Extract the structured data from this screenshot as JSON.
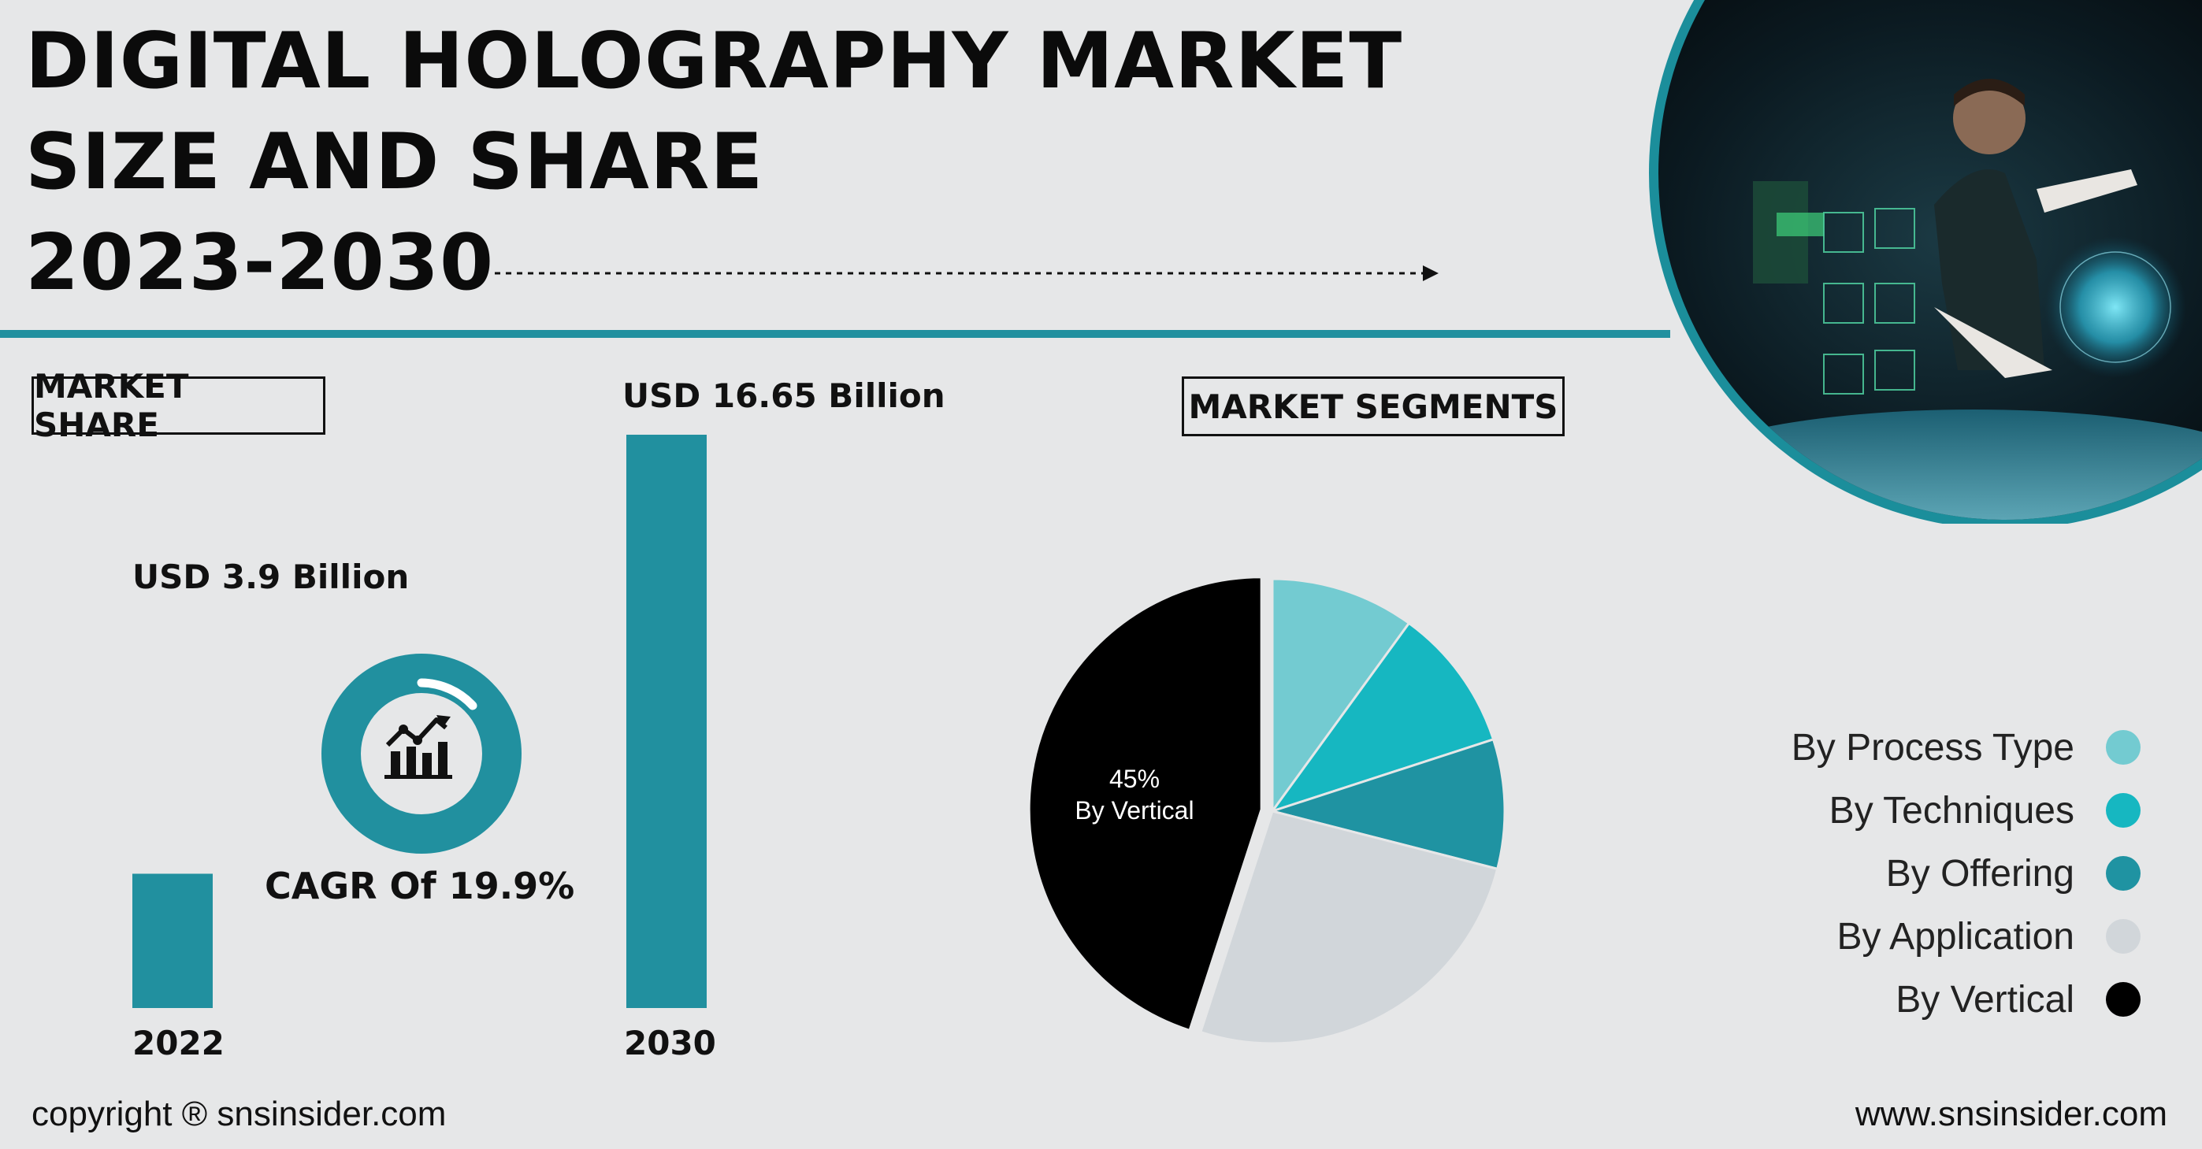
{
  "title": {
    "line1": "DIGITAL HOLOGRAPHY MARKET",
    "line2": "SIZE AND SHARE",
    "line3": "2023-2030"
  },
  "market_share_label": "MARKET SHARE",
  "market_segments_label": "MARKET SEGMENTS",
  "cagr_text": "CAGR Of 19.9%",
  "pie_center_label": {
    "value": "45%",
    "label": "By Vertical"
  },
  "footer": {
    "copyright": "copyright ® snsinsider.com",
    "website": "www.snsinsider.com"
  },
  "colors": {
    "teal": "#21909f",
    "accent": "#16b7c1",
    "light_teal": "#73cbd1",
    "light_gray": "#d1d6da",
    "black": "#000000"
  },
  "chart_data": [
    {
      "type": "bar",
      "categories": [
        "2022",
        "2030"
      ],
      "values": [
        3.9,
        16.65
      ],
      "value_labels": [
        "USD 3.9 Billion",
        "USD 16.65 Billion"
      ],
      "color": "#21909f"
    },
    {
      "type": "pie",
      "labels": [
        "By Process Type",
        "By Techniques",
        "By Offering",
        "By Application",
        "By Vertical"
      ],
      "values": [
        10,
        10,
        9,
        26,
        45
      ],
      "colors": [
        "#73cbd1",
        "#16b7c1",
        "#1f93a2",
        "#d1d6da",
        "#000000"
      ],
      "legend_position": "right"
    }
  ]
}
